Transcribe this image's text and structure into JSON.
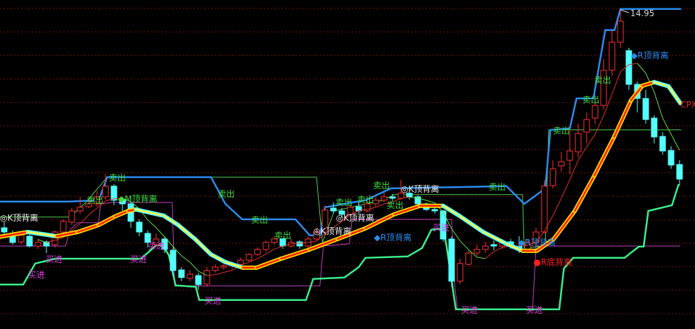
{
  "chart_data": {
    "type": "candlestick",
    "x_unit": "bar index",
    "max_price_label": "14.95",
    "grid": true,
    "colors": {
      "background": "#000000",
      "grid": "#7a1010",
      "up": "#ff3232",
      "down": "#54ffff",
      "upper_band": "#2c8cf0",
      "lower_band": "#3cf08c",
      "stop_line": "#c040c0",
      "resistance_line": "#50d050",
      "ma_rising_outer": "#ffd800",
      "ma_rising_inner": "#ff2000",
      "ma_falling_outer": "#54ffff",
      "ma_falling_inner": "#ffff40",
      "sell_label": "#40e040",
      "buy_label": "#e040e0",
      "k_label": "#f0f0f0",
      "r_top_label": "#2c8cf0",
      "r_bottom_label": "#ff2020",
      "cpx_label": "#e02020"
    },
    "candles": [
      [
        7.2,
        7.4,
        6.9,
        7.05
      ],
      [
        7.0,
        7.1,
        6.6,
        6.68
      ],
      [
        6.7,
        7.0,
        6.6,
        6.93
      ],
      [
        6.9,
        7.0,
        6.5,
        6.55
      ],
      [
        6.55,
        6.8,
        6.45,
        6.68
      ],
      [
        6.7,
        6.75,
        6.3,
        6.55
      ],
      [
        6.6,
        7.1,
        6.5,
        7.05
      ],
      [
        7.05,
        7.5,
        6.95,
        7.43
      ],
      [
        7.4,
        7.9,
        7.3,
        7.8
      ],
      [
        7.8,
        8.3,
        7.7,
        7.93
      ],
      [
        7.95,
        8.2,
        7.9,
        8.05
      ],
      [
        8.05,
        8.5,
        7.95,
        8.3
      ],
      [
        8.3,
        9.1,
        8.2,
        8.68
      ],
      [
        8.68,
        8.75,
        8.0,
        8.18
      ],
      [
        8.2,
        8.3,
        7.8,
        8.05
      ],
      [
        8.05,
        8.1,
        7.2,
        7.43
      ],
      [
        7.4,
        7.5,
        6.9,
        7.05
      ],
      [
        7.0,
        7.1,
        6.5,
        6.68
      ],
      [
        6.6,
        7.0,
        6.5,
        6.8
      ],
      [
        6.8,
        6.9,
        6.3,
        6.43
      ],
      [
        6.4,
        6.5,
        5.5,
        5.68
      ],
      [
        5.7,
        5.8,
        5.3,
        5.43
      ],
      [
        5.4,
        5.7,
        5.3,
        5.55
      ],
      [
        5.5,
        5.6,
        5.0,
        5.18
      ],
      [
        5.2,
        5.8,
        5.1,
        5.68
      ],
      [
        5.68,
        5.9,
        5.6,
        5.8
      ],
      [
        5.8,
        5.95,
        5.7,
        5.85
      ],
      [
        5.85,
        6.0,
        5.75,
        5.93
      ],
      [
        5.9,
        6.15,
        5.85,
        6.05
      ],
      [
        6.05,
        6.3,
        6.0,
        6.25
      ],
      [
        6.25,
        6.5,
        6.2,
        6.43
      ],
      [
        6.43,
        6.75,
        6.35,
        6.68
      ],
      [
        6.68,
        6.9,
        6.6,
        6.8
      ],
      [
        6.8,
        6.85,
        6.45,
        6.55
      ],
      [
        6.55,
        6.8,
        6.5,
        6.68
      ],
      [
        6.7,
        6.75,
        6.45,
        6.55
      ],
      [
        6.55,
        6.9,
        6.5,
        6.8
      ],
      [
        6.8,
        7.2,
        6.75,
        7.05
      ],
      [
        7.05,
        8.0,
        6.9,
        7.83
      ],
      [
        7.9,
        8.1,
        7.7,
        7.8
      ],
      [
        7.8,
        7.9,
        7.55,
        7.68
      ],
      [
        7.68,
        8.0,
        7.6,
        7.93
      ],
      [
        7.95,
        8.1,
        7.7,
        7.8
      ],
      [
        7.8,
        8.15,
        7.75,
        8.05
      ],
      [
        8.05,
        8.3,
        7.95,
        8.18
      ],
      [
        8.18,
        8.45,
        8.1,
        8.3
      ],
      [
        8.3,
        8.4,
        8.15,
        8.25
      ],
      [
        8.25,
        8.9,
        8.2,
        8.43
      ],
      [
        8.43,
        8.5,
        8.2,
        8.3
      ],
      [
        8.3,
        8.35,
        7.95,
        8.05
      ],
      [
        8.05,
        8.1,
        7.8,
        7.85
      ],
      [
        7.85,
        8.0,
        7.7,
        7.8
      ],
      [
        7.8,
        7.85,
        6.7,
        6.8
      ],
      [
        6.8,
        6.9,
        5.1,
        5.3
      ],
      [
        5.3,
        6.1,
        5.2,
        5.93
      ],
      [
        5.9,
        6.4,
        5.85,
        6.3
      ],
      [
        6.3,
        6.6,
        6.2,
        6.43
      ],
      [
        6.43,
        6.7,
        6.3,
        6.55
      ],
      [
        6.6,
        6.75,
        6.4,
        6.55
      ],
      [
        6.55,
        6.8,
        6.45,
        6.68
      ],
      [
        6.7,
        6.8,
        6.45,
        6.55
      ],
      [
        6.55,
        6.9,
        6.3,
        6.43
      ],
      [
        6.43,
        6.8,
        6.35,
        6.68
      ],
      [
        6.68,
        7.2,
        6.6,
        7.05
      ],
      [
        7.05,
        8.9,
        7.0,
        8.68
      ],
      [
        8.7,
        9.6,
        8.6,
        9.3
      ],
      [
        9.4,
        9.9,
        9.2,
        9.55
      ],
      [
        9.6,
        10.7,
        9.1,
        9.93
      ],
      [
        9.9,
        10.9,
        9.7,
        10.55
      ],
      [
        10.6,
        11.3,
        10.2,
        11.05
      ],
      [
        11.1,
        11.9,
        10.9,
        11.55
      ],
      [
        11.55,
        13.2,
        11.4,
        12.8
      ],
      [
        12.8,
        14.2,
        12.6,
        13.8
      ],
      [
        13.8,
        14.95,
        13.6,
        14.55
      ],
      [
        13.5,
        13.6,
        12.1,
        12.3
      ],
      [
        12.3,
        12.4,
        11.3,
        11.8
      ],
      [
        11.8,
        12.1,
        10.9,
        11.05
      ],
      [
        11.1,
        11.2,
        10.2,
        10.43
      ],
      [
        10.45,
        10.6,
        9.8,
        9.93
      ],
      [
        9.95,
        10.1,
        9.3,
        9.43
      ],
      [
        9.45,
        9.6,
        8.7,
        8.93
      ]
    ],
    "lines": {
      "upper_band": [
        [
          -0.5,
          8.13
        ],
        [
          7.6,
          8.13
        ],
        [
          11.2,
          8.18
        ],
        [
          12.2,
          9.0
        ],
        [
          24.5,
          9.0
        ],
        [
          26.2,
          8.05
        ],
        [
          28.2,
          7.5
        ],
        [
          34.5,
          7.5
        ],
        [
          36.2,
          6.93
        ],
        [
          37.4,
          6.93
        ],
        [
          38,
          7.93
        ],
        [
          42.8,
          8.18
        ],
        [
          45.8,
          8.6
        ],
        [
          59.5,
          8.68
        ],
        [
          61.6,
          8.05
        ],
        [
          64.1,
          8.6
        ],
        [
          64.7,
          10.68
        ],
        [
          67,
          10.73
        ],
        [
          67.8,
          11.8
        ],
        [
          69.8,
          11.8
        ],
        [
          71.2,
          14.23
        ],
        [
          72.3,
          14.23
        ],
        [
          73,
          14.98
        ],
        [
          80.2,
          14.98
        ]
      ],
      "lower_band": [
        [
          -0.5,
          5.18
        ],
        [
          2.25,
          5.18
        ],
        [
          3.67,
          5.93
        ],
        [
          4.67,
          6.0
        ],
        [
          6.0,
          6.1
        ],
        [
          16.2,
          6.1
        ],
        [
          18.1,
          6.6
        ],
        [
          18.8,
          6.55
        ],
        [
          19.5,
          6.23
        ],
        [
          20.3,
          5.15
        ],
        [
          22.7,
          5.1
        ],
        [
          23.1,
          4.63
        ],
        [
          35.75,
          4.63
        ],
        [
          36.6,
          5.38
        ],
        [
          40.3,
          5.43
        ],
        [
          42,
          5.8
        ],
        [
          42.8,
          6.13
        ],
        [
          47.8,
          6.18
        ],
        [
          49.5,
          6.48
        ],
        [
          50.6,
          7.13
        ],
        [
          52,
          7.18
        ],
        [
          52.4,
          6.55
        ],
        [
          53.5,
          4.3
        ],
        [
          65.75,
          4.3
        ],
        [
          66.3,
          5.75
        ],
        [
          67.4,
          6.13
        ],
        [
          73.5,
          6.13
        ],
        [
          74.1,
          6.28
        ],
        [
          75.2,
          6.53
        ],
        [
          75.75,
          6.53
        ],
        [
          76.3,
          7.8
        ],
        [
          79.1,
          8.0
        ],
        [
          79.9,
          8.75
        ]
      ],
      "stop_line": [
        [
          -0.5,
          6.55
        ],
        [
          7.25,
          6.55
        ],
        [
          7.8,
          7.13
        ],
        [
          8.7,
          7.38
        ],
        [
          11.2,
          7.38
        ],
        [
          11.4,
          8.05
        ],
        [
          12.8,
          8.1
        ],
        [
          19.9,
          8.1
        ],
        [
          20.2,
          5.13
        ],
        [
          37.4,
          5.13
        ],
        [
          37.8,
          6.55
        ],
        [
          40.9,
          6.63
        ],
        [
          41.2,
          7.5
        ],
        [
          53,
          7.5
        ],
        [
          53.4,
          5.05
        ],
        [
          53.7,
          4.3
        ],
        [
          62.6,
          4.3
        ],
        [
          63,
          6.55
        ],
        [
          80.1,
          6.55
        ]
      ],
      "resistance_line": [
        [
          -0.5,
          7.58
        ],
        [
          7.8,
          7.58
        ],
        [
          9.75,
          8.13
        ],
        [
          12.2,
          9.0
        ],
        [
          37,
          9.0
        ],
        [
          37.7,
          6.68
        ],
        [
          39.1,
          7.8
        ],
        [
          44.9,
          8.18
        ],
        [
          46.2,
          8.38
        ],
        [
          61.4,
          8.38
        ],
        [
          61.6,
          6.48
        ],
        [
          64.1,
          6.55
        ],
        [
          64.5,
          10.68
        ],
        [
          80.2,
          10.68
        ]
      ],
      "trend_ma": [
        [
          -0.5,
          6.88
        ],
        [
          2.8,
          7.05
        ],
        [
          6.2,
          6.9
        ],
        [
          8.7,
          7.05
        ],
        [
          11.2,
          7.3
        ],
        [
          13.1,
          7.6
        ],
        [
          14.7,
          7.8
        ],
        [
          15.6,
          7.85
        ],
        [
          18.9,
          7.63
        ],
        [
          20.6,
          7.3
        ],
        [
          22.6,
          6.8
        ],
        [
          24.5,
          6.25
        ],
        [
          26.2,
          5.98
        ],
        [
          28.25,
          5.78
        ],
        [
          29.9,
          5.78
        ],
        [
          32.8,
          6.1
        ],
        [
          36.2,
          6.43
        ],
        [
          39.5,
          6.8
        ],
        [
          42.8,
          7.18
        ],
        [
          46.2,
          7.68
        ],
        [
          49.25,
          7.98
        ],
        [
          52,
          7.98
        ],
        [
          53.9,
          7.63
        ],
        [
          56.75,
          7.05
        ],
        [
          59.5,
          6.63
        ],
        [
          61.4,
          6.38
        ],
        [
          63.1,
          6.38
        ],
        [
          65.1,
          6.8
        ],
        [
          67.6,
          7.8
        ],
        [
          69.9,
          9.05
        ],
        [
          72.25,
          10.43
        ],
        [
          74.25,
          11.73
        ],
        [
          75.6,
          12.25
        ],
        [
          77,
          12.38
        ],
        [
          78.7,
          12.23
        ],
        [
          80.1,
          11.63
        ]
      ]
    },
    "annotations": [
      {
        "text": "卖出",
        "kind": "sell",
        "at": [
          12.4,
          9.0
        ]
      },
      {
        "text": "卖出",
        "kind": "sell",
        "at": [
          25.3,
          8.43
        ]
      },
      {
        "text": "卖出",
        "kind": "sell",
        "at": [
          29.25,
          7.5
        ]
      },
      {
        "text": "卖出",
        "kind": "sell",
        "at": [
          32,
          6.95
        ]
      },
      {
        "text": "卖出",
        "kind": "sell",
        "at": [
          9.75,
          8.2
        ]
      },
      {
        "text": "卖出",
        "kind": "sell",
        "at": [
          39.25,
          8.13
        ]
      },
      {
        "text": "卖出",
        "kind": "sell",
        "at": [
          41.8,
          8.23
        ]
      },
      {
        "text": "卖出",
        "kind": "sell",
        "at": [
          43.7,
          8.38
        ]
      },
      {
        "text": "卖出",
        "kind": "sell",
        "at": [
          45.3,
          8.38
        ]
      },
      {
        "text": "卖出",
        "kind": "sell",
        "at": [
          57.4,
          8.68
        ]
      },
      {
        "text": "卖出",
        "kind": "sell",
        "at": [
          65,
          10.68
        ]
      },
      {
        "text": "卖出",
        "kind": "sell",
        "at": [
          68.5,
          11.78
        ]
      },
      {
        "text": "卖出",
        "kind": "sell",
        "at": [
          69.9,
          11.78
        ]
      },
      {
        "text": "买进",
        "kind": "buy",
        "at": [
          2.8,
          5.55
        ]
      },
      {
        "text": "买进",
        "kind": "buy",
        "at": [
          4.9,
          6.1
        ]
      },
      {
        "text": "买进",
        "kind": "buy",
        "at": [
          14.9,
          6.1
        ]
      },
      {
        "text": "买进",
        "kind": "buy",
        "at": [
          17,
          6.23
        ]
      },
      {
        "text": "买进",
        "kind": "buy",
        "at": [
          23.7,
          4.63
        ]
      },
      {
        "text": "买进",
        "kind": "buy",
        "at": [
          50.75,
          7.23
        ]
      },
      {
        "text": "买进",
        "kind": "buy",
        "at": [
          54.1,
          4.3
        ]
      },
      {
        "text": "买进",
        "kind": "buy",
        "at": [
          61.8,
          4.3
        ]
      },
      {
        "text": "◆M顶背离",
        "kind": "sell",
        "at": [
          13.5,
          8.25
        ]
      },
      {
        "text": "◎K顶背离",
        "kind": "k",
        "at": [
          -0.9,
          7.58
        ]
      },
      {
        "text": "◎K顶背离",
        "kind": "k",
        "at": [
          36.6,
          7.1
        ]
      },
      {
        "text": "◎K顶背离",
        "kind": "k",
        "at": [
          39.3,
          7.93
        ]
      },
      {
        "text": "◎K顶背离",
        "kind": "k",
        "at": [
          47,
          8.6
        ]
      },
      {
        "text": "◆R顶背离",
        "kind": "r_top",
        "at": [
          43.8,
          7.93
        ]
      },
      {
        "text": "◆R顶背离",
        "kind": "r_top",
        "at": [
          60.9,
          6.7
        ]
      },
      {
        "text": "◆R顶背离",
        "kind": "r_top",
        "at": [
          74.25,
          13.35
        ]
      },
      {
        "text": "●R底背离",
        "kind": "r_bottom",
        "at": [
          62.7,
          6.0
        ]
      },
      {
        "text": "CPX",
        "kind": "cpx",
        "at": [
          80.1,
          11.6
        ]
      }
    ],
    "max_marker_bar": 73
  }
}
